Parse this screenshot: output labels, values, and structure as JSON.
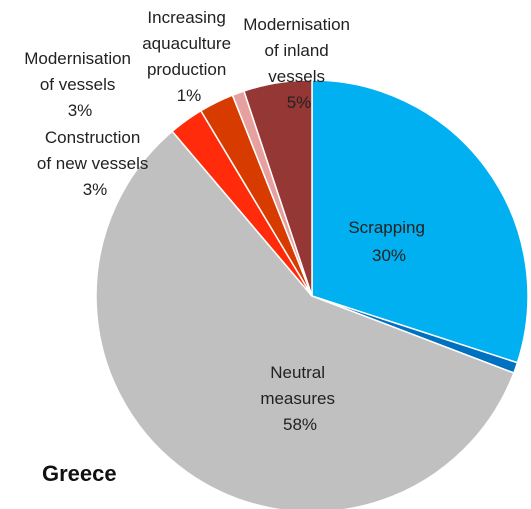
{
  "chart_data": {
    "type": "pie",
    "title": "Greece",
    "slices": [
      {
        "name": "Scrapping",
        "value": 30,
        "label_value": "30%",
        "color": "#00b0f0"
      },
      {
        "name": "",
        "value": 0.8,
        "color": "#0070c0"
      },
      {
        "name": "Neutral measures",
        "value": 58,
        "label_value": "58%",
        "color": "#c0c0c0"
      },
      {
        "name": "Construction of new vessels",
        "value": 2.6,
        "label_value": "3%",
        "color": "#ff2b0a"
      },
      {
        "name": "Modernisation of vessels",
        "value": 2.6,
        "label_value": "3%",
        "color": "#d83b00"
      },
      {
        "name": "Increasing aquaculture production",
        "value": 0.9,
        "label_value": "1%",
        "color": "#e6a0a0"
      },
      {
        "name": "Modernisation of inland vessels",
        "value": 5.1,
        "label_value": "5%",
        "color": "#953735"
      }
    ],
    "start_angle_deg": 0,
    "direction": "clockwise",
    "legend": "none"
  },
  "labels": {
    "scrapping": [
      "Scrapping",
      "30%"
    ],
    "neutral": [
      "Neutral",
      "measures",
      "58%"
    ],
    "construction": [
      "Construction",
      "of new vessels",
      "3%"
    ],
    "modernisation_vessels": [
      "Modernisation",
      "of vessels",
      "3%"
    ],
    "aquaculture": [
      "Increasing",
      "aquaculture",
      "production",
      "1%"
    ],
    "inland": [
      "Modernisation",
      "of inland",
      "vessels",
      "5%"
    ]
  }
}
